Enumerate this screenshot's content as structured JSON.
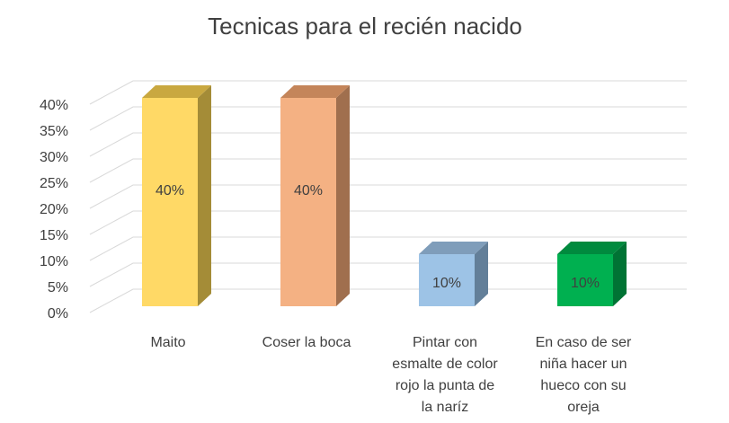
{
  "chart_data": {
    "type": "bar",
    "title": "Tecnicas para el recién nacido",
    "categories": [
      "Maito",
      "Coser la boca",
      "Pintar con esmalte de color rojo la punta de la naríz",
      "En caso de ser niña hacer un hueco con su oreja"
    ],
    "category_lines": [
      [
        "Maito"
      ],
      [
        "Coser la boca"
      ],
      [
        "Pintar con",
        "esmalte de color",
        "rojo la punta de",
        "la naríz"
      ],
      [
        "En caso de ser",
        "niña hacer un",
        "hueco con su",
        "oreja"
      ]
    ],
    "values": [
      40,
      40,
      10,
      10
    ],
    "data_labels": [
      "40%",
      "40%",
      "10%",
      "10%"
    ],
    "y_ticks": [
      "0%",
      "5%",
      "10%",
      "15%",
      "20%",
      "25%",
      "30%",
      "35%",
      "40%"
    ],
    "ylim": [
      0,
      40
    ],
    "grid": true,
    "legend": "none",
    "colors": [
      {
        "front": "#ffd966",
        "side": "#a48c37",
        "top": "#c9a840"
      },
      {
        "front": "#f4b183",
        "side": "#a06f4e",
        "top": "#c4855a"
      },
      {
        "front": "#9dc3e6",
        "side": "#637f99",
        "top": "#7f9dba"
      },
      {
        "front": "#00b050",
        "side": "#007334",
        "top": "#008a3e"
      }
    ]
  }
}
